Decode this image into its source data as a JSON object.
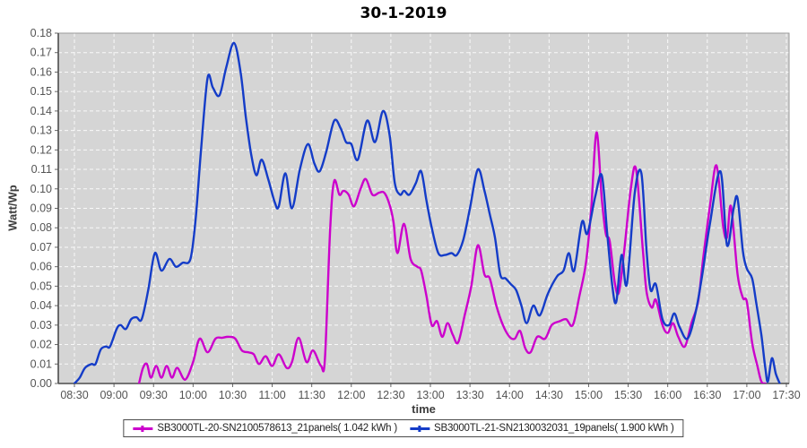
{
  "window": {
    "title": "30-1-2019"
  },
  "chart_data": {
    "type": "line",
    "title": "30-1-2019",
    "xlabel": "time",
    "ylabel": "Watt/Wp",
    "ylim": [
      0,
      0.18
    ],
    "grid": true,
    "legend_position": "bottom",
    "plot_bg_color": "#d5d5d5",
    "grid_color": "#ffffff",
    "x_tick_labels": [
      "08:30",
      "09:00",
      "09:30",
      "10:00",
      "10:30",
      "11:00",
      "11:30",
      "12:00",
      "12:30",
      "13:00",
      "13:30",
      "14:00",
      "14:30",
      "15:00",
      "15:30",
      "16:00",
      "16:30",
      "17:00",
      "17:30"
    ],
    "y_tick_labels": [
      "0.00",
      "0.01",
      "0.02",
      "0.03",
      "0.04",
      "0.05",
      "0.06",
      "0.07",
      "0.08",
      "0.09",
      "0.10",
      "0.11",
      "0.12",
      "0.13",
      "0.14",
      "0.15",
      "0.16",
      "0.17",
      "0.18"
    ],
    "series": [
      {
        "name": "SB3000TL-20",
        "label": "SB3000TL-20-SN2100578613_21panels( 1.042 kWh )",
        "energy_kwh": 1.042,
        "color": "#cc00cc",
        "points": [
          [
            "09:19",
            0.0
          ],
          [
            "09:22",
            0.008
          ],
          [
            "09:25",
            0.01
          ],
          [
            "09:28",
            0.003
          ],
          [
            "09:32",
            0.009
          ],
          [
            "09:36",
            0.003
          ],
          [
            "09:40",
            0.009
          ],
          [
            "09:44",
            0.003
          ],
          [
            "09:48",
            0.008
          ],
          [
            "09:54",
            0.002
          ],
          [
            "10:00",
            0.011
          ],
          [
            "10:05",
            0.023
          ],
          [
            "10:11",
            0.016
          ],
          [
            "10:17",
            0.023
          ],
          [
            "10:22",
            0.0235
          ],
          [
            "10:27",
            0.024
          ],
          [
            "10:32",
            0.023
          ],
          [
            "10:37",
            0.017
          ],
          [
            "10:42",
            0.016
          ],
          [
            "10:46",
            0.015
          ],
          [
            "10:50",
            0.01
          ],
          [
            "10:55",
            0.014
          ],
          [
            "11:00",
            0.009
          ],
          [
            "11:05",
            0.015
          ],
          [
            "11:11",
            0.008
          ],
          [
            "11:15",
            0.011
          ],
          [
            "11:20",
            0.0235
          ],
          [
            "11:26",
            0.011
          ],
          [
            "11:31",
            0.017
          ],
          [
            "11:37",
            0.009
          ],
          [
            "11:40",
            0.013
          ],
          [
            "11:44",
            0.08
          ],
          [
            "11:47",
            0.104
          ],
          [
            "11:51",
            0.097
          ],
          [
            "11:54",
            0.099
          ],
          [
            "11:58",
            0.097
          ],
          [
            "12:02",
            0.091
          ],
          [
            "12:07",
            0.1
          ],
          [
            "12:11",
            0.105
          ],
          [
            "12:16",
            0.097
          ],
          [
            "12:21",
            0.098
          ],
          [
            "12:25",
            0.098
          ],
          [
            "12:29",
            0.092
          ],
          [
            "12:32",
            0.083
          ],
          [
            "12:35",
            0.067
          ],
          [
            "12:40",
            0.082
          ],
          [
            "12:45",
            0.064
          ],
          [
            "12:50",
            0.06
          ],
          [
            "12:53",
            0.058
          ],
          [
            "12:57",
            0.045
          ],
          [
            "13:01",
            0.03
          ],
          [
            "13:05",
            0.032
          ],
          [
            "13:09",
            0.024
          ],
          [
            "13:13",
            0.031
          ],
          [
            "13:17",
            0.025
          ],
          [
            "13:21",
            0.021
          ],
          [
            "13:26",
            0.035
          ],
          [
            "13:31",
            0.05
          ],
          [
            "13:36",
            0.071
          ],
          [
            "13:41",
            0.056
          ],
          [
            "13:45",
            0.054
          ],
          [
            "13:50",
            0.04
          ],
          [
            "13:55",
            0.03
          ],
          [
            "14:00",
            0.024
          ],
          [
            "14:04",
            0.023
          ],
          [
            "14:08",
            0.027
          ],
          [
            "14:12",
            0.018
          ],
          [
            "14:16",
            0.016
          ],
          [
            "14:21",
            0.024
          ],
          [
            "14:27",
            0.023
          ],
          [
            "14:32",
            0.03
          ],
          [
            "14:38",
            0.032
          ],
          [
            "14:43",
            0.033
          ],
          [
            "14:48",
            0.03
          ],
          [
            "14:53",
            0.045
          ],
          [
            "14:58",
            0.062
          ],
          [
            "15:02",
            0.09
          ],
          [
            "15:06",
            0.129
          ],
          [
            "15:10",
            0.095
          ],
          [
            "15:13",
            0.077
          ],
          [
            "15:16",
            0.073
          ],
          [
            "15:20",
            0.051
          ],
          [
            "15:23",
            0.047
          ],
          [
            "15:27",
            0.068
          ],
          [
            "15:32",
            0.1
          ],
          [
            "15:36",
            0.11
          ],
          [
            "15:41",
            0.07
          ],
          [
            "15:44",
            0.047
          ],
          [
            "15:48",
            0.039
          ],
          [
            "15:51",
            0.043
          ],
          [
            "15:56",
            0.03
          ],
          [
            "16:00",
            0.026
          ],
          [
            "16:04",
            0.031
          ],
          [
            "16:08",
            0.024
          ],
          [
            "16:13",
            0.019
          ],
          [
            "16:18",
            0.031
          ],
          [
            "16:23",
            0.042
          ],
          [
            "16:27",
            0.065
          ],
          [
            "16:32",
            0.091
          ],
          [
            "16:37",
            0.112
          ],
          [
            "16:42",
            0.081
          ],
          [
            "16:45",
            0.075
          ],
          [
            "16:48",
            0.091
          ],
          [
            "16:53",
            0.056
          ],
          [
            "16:57",
            0.044
          ],
          [
            "17:00",
            0.042
          ],
          [
            "17:04",
            0.021
          ],
          [
            "17:08",
            0.009
          ],
          [
            "17:11",
            0.001
          ],
          [
            "17:14",
            0.0
          ]
        ]
      },
      {
        "name": "SB3000TL-21",
        "label": "SB3000TL-21-SN2130032031_19panels( 1.900 kWh )",
        "energy_kwh": 1.9,
        "color": "#143cc8",
        "points": [
          [
            "08:30",
            0.0
          ],
          [
            "08:34",
            0.003
          ],
          [
            "08:38",
            0.008
          ],
          [
            "08:43",
            0.01
          ],
          [
            "08:46",
            0.01
          ],
          [
            "08:50",
            0.0175
          ],
          [
            "08:54",
            0.019
          ],
          [
            "08:57",
            0.019
          ],
          [
            "09:02",
            0.028
          ],
          [
            "09:05",
            0.03
          ],
          [
            "09:09",
            0.028
          ],
          [
            "09:13",
            0.033
          ],
          [
            "09:17",
            0.034
          ],
          [
            "09:21",
            0.033
          ],
          [
            "09:26",
            0.048
          ],
          [
            "09:31",
            0.067
          ],
          [
            "09:36",
            0.058
          ],
          [
            "09:42",
            0.064
          ],
          [
            "09:47",
            0.06
          ],
          [
            "09:52",
            0.062
          ],
          [
            "09:58",
            0.064
          ],
          [
            "10:02",
            0.085
          ],
          [
            "10:06",
            0.12
          ],
          [
            "10:11",
            0.157
          ],
          [
            "10:15",
            0.152
          ],
          [
            "10:20",
            0.148
          ],
          [
            "10:25",
            0.162
          ],
          [
            "10:31",
            0.175
          ],
          [
            "10:36",
            0.16
          ],
          [
            "10:40",
            0.137
          ],
          [
            "10:44",
            0.118
          ],
          [
            "10:48",
            0.107
          ],
          [
            "10:52",
            0.115
          ],
          [
            "10:57",
            0.105
          ],
          [
            "11:02",
            0.093
          ],
          [
            "11:05",
            0.091
          ],
          [
            "11:10",
            0.108
          ],
          [
            "11:15",
            0.09
          ],
          [
            "11:21",
            0.11
          ],
          [
            "11:27",
            0.123
          ],
          [
            "11:32",
            0.113
          ],
          [
            "11:36",
            0.109
          ],
          [
            "11:41",
            0.119
          ],
          [
            "11:47",
            0.135
          ],
          [
            "11:52",
            0.131
          ],
          [
            "11:56",
            0.124
          ],
          [
            "12:00",
            0.123
          ],
          [
            "12:05",
            0.115
          ],
          [
            "12:12",
            0.135
          ],
          [
            "12:18",
            0.124
          ],
          [
            "12:24",
            0.14
          ],
          [
            "12:29",
            0.128
          ],
          [
            "12:33",
            0.103
          ],
          [
            "12:37",
            0.097
          ],
          [
            "12:40",
            0.099
          ],
          [
            "12:44",
            0.097
          ],
          [
            "12:49",
            0.103
          ],
          [
            "12:53",
            0.109
          ],
          [
            "12:57",
            0.094
          ],
          [
            "13:01",
            0.08
          ],
          [
            "13:06",
            0.067
          ],
          [
            "13:11",
            0.066
          ],
          [
            "13:16",
            0.067
          ],
          [
            "13:20",
            0.066
          ],
          [
            "13:25",
            0.074
          ],
          [
            "13:30",
            0.09
          ],
          [
            "13:36",
            0.11
          ],
          [
            "13:41",
            0.099
          ],
          [
            "13:45",
            0.087
          ],
          [
            "13:49",
            0.075
          ],
          [
            "13:53",
            0.056
          ],
          [
            "13:57",
            0.054
          ],
          [
            "14:01",
            0.051
          ],
          [
            "14:05",
            0.048
          ],
          [
            "14:09",
            0.04
          ],
          [
            "14:13",
            0.031
          ],
          [
            "14:18",
            0.04
          ],
          [
            "14:23",
            0.035
          ],
          [
            "14:29",
            0.046
          ],
          [
            "14:36",
            0.055
          ],
          [
            "14:41",
            0.058
          ],
          [
            "14:45",
            0.067
          ],
          [
            "14:49",
            0.058
          ],
          [
            "14:55",
            0.083
          ],
          [
            "14:59",
            0.077
          ],
          [
            "15:05",
            0.096
          ],
          [
            "15:10",
            0.107
          ],
          [
            "15:14",
            0.078
          ],
          [
            "15:18",
            0.05
          ],
          [
            "15:21",
            0.042
          ],
          [
            "15:25",
            0.066
          ],
          [
            "15:29",
            0.051
          ],
          [
            "15:35",
            0.098
          ],
          [
            "15:40",
            0.108
          ],
          [
            "15:44",
            0.068
          ],
          [
            "15:47",
            0.048
          ],
          [
            "15:51",
            0.051
          ],
          [
            "15:56",
            0.033
          ],
          [
            "16:01",
            0.03
          ],
          [
            "16:05",
            0.036
          ],
          [
            "16:09",
            0.029
          ],
          [
            "16:15",
            0.023
          ],
          [
            "16:21",
            0.036
          ],
          [
            "16:26",
            0.055
          ],
          [
            "16:32",
            0.082
          ],
          [
            "16:40",
            0.109
          ],
          [
            "16:45",
            0.071
          ],
          [
            "16:50",
            0.09
          ],
          [
            "16:53",
            0.095
          ],
          [
            "16:57",
            0.068
          ],
          [
            "17:00",
            0.059
          ],
          [
            "17:04",
            0.054
          ],
          [
            "17:07",
            0.042
          ],
          [
            "17:11",
            0.025
          ],
          [
            "17:14",
            0.008
          ],
          [
            "17:16",
            0.001
          ],
          [
            "17:19",
            0.013
          ],
          [
            "17:22",
            0.005
          ],
          [
            "17:25",
            0.0
          ]
        ]
      }
    ]
  }
}
